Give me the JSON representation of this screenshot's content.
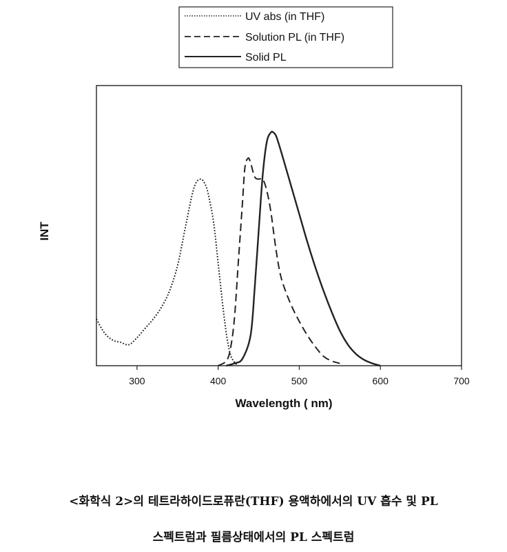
{
  "chart_data": {
    "type": "line",
    "xlabel": "Wavelength (  nm)",
    "ylabel": "INT",
    "xlim": [
      250,
      700
    ],
    "ylim": [
      0,
      1.0
    ],
    "x_ticks": [
      300,
      400,
      500,
      600,
      700
    ],
    "grid": false,
    "legend_position": "top-center",
    "series": [
      {
        "name": "UV abs  (in THF)",
        "style": "dotted",
        "x": [
          250,
          260,
          270,
          280,
          290,
          300,
          310,
          320,
          330,
          340,
          350,
          360,
          370,
          378,
          385,
          390,
          395,
          400,
          405,
          410,
          415,
          420,
          425
        ],
        "y": [
          0.2,
          0.14,
          0.11,
          0.1,
          0.09,
          0.12,
          0.16,
          0.2,
          0.25,
          0.32,
          0.43,
          0.6,
          0.76,
          0.8,
          0.77,
          0.7,
          0.6,
          0.44,
          0.28,
          0.14,
          0.05,
          0.015,
          0.0
        ]
      },
      {
        "name": "Solution PL (in THF)",
        "style": "dashed",
        "x": [
          400,
          410,
          415,
          420,
          425,
          430,
          433,
          437,
          440,
          445,
          450,
          455,
          460,
          465,
          470,
          475,
          480,
          490,
          500,
          510,
          520,
          530,
          540,
          550
        ],
        "y": [
          0.0,
          0.02,
          0.07,
          0.2,
          0.45,
          0.7,
          0.85,
          0.89,
          0.87,
          0.81,
          0.8,
          0.8,
          0.75,
          0.66,
          0.53,
          0.42,
          0.35,
          0.26,
          0.19,
          0.13,
          0.08,
          0.04,
          0.02,
          0.01
        ]
      },
      {
        "name": "Solid PL",
        "style": "solid",
        "x": [
          410,
          420,
          430,
          440,
          445,
          450,
          455,
          460,
          465,
          468,
          472,
          480,
          490,
          500,
          510,
          520,
          530,
          540,
          550,
          560,
          570,
          580,
          590,
          600
        ],
        "y": [
          0.0,
          0.01,
          0.03,
          0.13,
          0.33,
          0.58,
          0.82,
          0.96,
          1.0,
          1.0,
          0.98,
          0.89,
          0.77,
          0.65,
          0.53,
          0.42,
          0.32,
          0.23,
          0.15,
          0.09,
          0.05,
          0.025,
          0.01,
          0.0
        ]
      }
    ]
  },
  "caption": {
    "line1": "<화학식 2>의 테트라하이드로퓨란(THF) 용액하에서의 UV 흡수 및 PL",
    "line2": "스펙트럼과 필름상태에서의 PL 스펙트럼"
  }
}
